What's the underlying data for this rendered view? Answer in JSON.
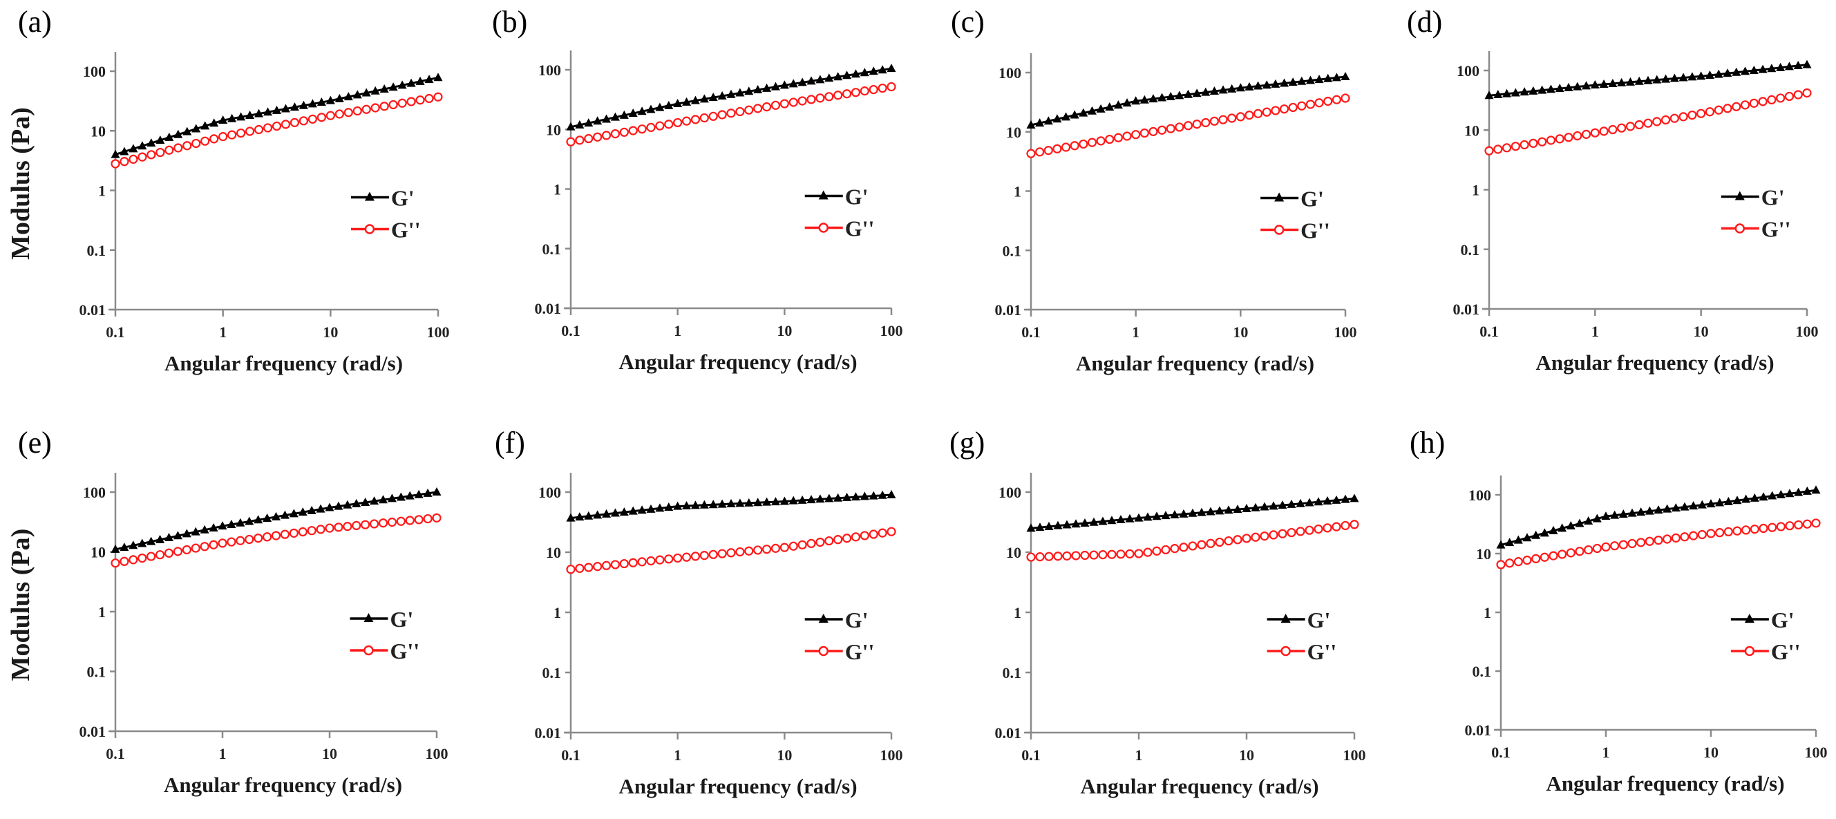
{
  "figure": {
    "y_axis_label": "Modulus (Pa)",
    "x_axis_label": "Angular frequency (rad/s)"
  },
  "colors": {
    "g_prime": "#000000",
    "g_double_prime": "#ff1a1a",
    "axis": "#8a8a8a"
  },
  "chart_data": [
    {
      "panel": "(a)",
      "type": "line",
      "xscale": "log",
      "yscale": "log",
      "xlabel": "Angular frequency (rad/s)",
      "ylabel": "Modulus (Pa)",
      "xlim": [
        0.1,
        100
      ],
      "ylim": [
        0.01,
        100
      ],
      "xticks": [
        "0.1",
        "1",
        "10",
        "100"
      ],
      "yticks": [
        "0.01",
        "0.1",
        "1",
        "10",
        "100"
      ],
      "legend": [
        "G'",
        "G''"
      ],
      "legend_position": "center-right",
      "x": [
        0.1,
        1,
        10,
        100
      ],
      "series": [
        {
          "name": "G'",
          "marker": "triangle",
          "values": [
            4,
            15,
            32,
            78
          ]
        },
        {
          "name": "G''",
          "marker": "open-circle",
          "values": [
            2.8,
            8,
            18,
            37
          ]
        }
      ]
    },
    {
      "panel": "(b)",
      "type": "line",
      "xscale": "log",
      "yscale": "log",
      "xlabel": "Angular frequency (rad/s)",
      "ylabel": "",
      "xlim": [
        0.1,
        100
      ],
      "ylim": [
        0.01,
        100
      ],
      "xticks": [
        "0.1",
        "1",
        "10",
        "100"
      ],
      "yticks": [
        "0.01",
        "0.1",
        "1",
        "10",
        "100"
      ],
      "legend": [
        "G'",
        "G''"
      ],
      "legend_position": "center-right",
      "x": [
        0.1,
        1,
        10,
        100
      ],
      "series": [
        {
          "name": "G'",
          "marker": "triangle",
          "values": [
            11,
            27,
            55,
            105
          ]
        },
        {
          "name": "G''",
          "marker": "open-circle",
          "values": [
            6.2,
            13,
            27,
            52
          ]
        }
      ]
    },
    {
      "panel": "(c)",
      "type": "line",
      "xscale": "log",
      "yscale": "log",
      "xlabel": "Angular frequency (rad/s)",
      "ylabel": "",
      "xlim": [
        0.1,
        100
      ],
      "ylim": [
        0.01,
        100
      ],
      "xticks": [
        "0.1",
        "1",
        "10",
        "100"
      ],
      "yticks": [
        "0.01",
        "0.1",
        "1",
        "10",
        "100"
      ],
      "legend": [
        "G'",
        "G''"
      ],
      "legend_position": "center-right",
      "x": [
        0.1,
        1,
        10,
        100
      ],
      "series": [
        {
          "name": "G'",
          "marker": "triangle",
          "values": [
            13,
            33,
            55,
            85
          ]
        },
        {
          "name": "G''",
          "marker": "open-circle",
          "values": [
            4.3,
            9,
            18,
            37
          ]
        }
      ]
    },
    {
      "panel": "(d)",
      "type": "line",
      "xscale": "log",
      "yscale": "log",
      "xlabel": "Angular frequency (rad/s)",
      "ylabel": "",
      "xlim": [
        0.1,
        100
      ],
      "ylim": [
        0.01,
        100
      ],
      "xticks": [
        "0.1",
        "1",
        "10",
        "100"
      ],
      "yticks": [
        "0.01",
        "0.1",
        "1",
        "10",
        "100"
      ],
      "legend": [
        "G'",
        "G''"
      ],
      "legend_position": "center-right",
      "x": [
        0.1,
        1,
        10,
        100
      ],
      "series": [
        {
          "name": "G'",
          "marker": "triangle",
          "values": [
            38,
            57,
            80,
            125
          ]
        },
        {
          "name": "G''",
          "marker": "open-circle",
          "values": [
            4.5,
            9,
            19,
            42
          ]
        }
      ]
    },
    {
      "panel": "(e)",
      "type": "line",
      "xscale": "log",
      "yscale": "log",
      "xlabel": "Angular frequency (rad/s)",
      "ylabel": "Modulus (Pa)",
      "xlim": [
        0.1,
        100
      ],
      "ylim": [
        0.01,
        100
      ],
      "xticks": [
        "0.1",
        "1",
        "10",
        "100"
      ],
      "yticks": [
        "0.01",
        "0.1",
        "1",
        "10",
        "100"
      ],
      "legend": [
        "G'",
        "G''"
      ],
      "legend_position": "center-right",
      "x": [
        0.1,
        1,
        10,
        100
      ],
      "series": [
        {
          "name": "G'",
          "marker": "triangle",
          "values": [
            11,
            27,
            55,
            100
          ]
        },
        {
          "name": "G''",
          "marker": "open-circle",
          "values": [
            6.5,
            14,
            25,
            37
          ]
        }
      ]
    },
    {
      "panel": "(f)",
      "type": "line",
      "xscale": "log",
      "yscale": "log",
      "xlabel": "Angular frequency (rad/s)",
      "ylabel": "",
      "xlim": [
        0.1,
        100
      ],
      "ylim": [
        0.01,
        100
      ],
      "xticks": [
        "0.1",
        "1",
        "10",
        "100"
      ],
      "yticks": [
        "0.01",
        "0.1",
        "1",
        "10",
        "100"
      ],
      "legend": [
        "G'",
        "G''"
      ],
      "legend_position": "center-right",
      "x": [
        0.1,
        1,
        10,
        100
      ],
      "series": [
        {
          "name": "G'",
          "marker": "triangle",
          "values": [
            37,
            58,
            70,
            90
          ]
        },
        {
          "name": "G''",
          "marker": "open-circle",
          "values": [
            5.2,
            8,
            12,
            22
          ]
        }
      ]
    },
    {
      "panel": "(g)",
      "type": "line",
      "xscale": "log",
      "yscale": "log",
      "xlabel": "Angular frequency (rad/s)",
      "ylabel": "",
      "xlim": [
        0.1,
        100
      ],
      "ylim": [
        0.01,
        100
      ],
      "xticks": [
        "0.1",
        "1",
        "10",
        "100"
      ],
      "yticks": [
        "0.01",
        "0.1",
        "1",
        "10",
        "100"
      ],
      "legend": [
        "G'",
        "G''"
      ],
      "legend_position": "center-right",
      "x": [
        0.1,
        1,
        10,
        100
      ],
      "series": [
        {
          "name": "G'",
          "marker": "triangle",
          "values": [
            25,
            37,
            53,
            78
          ]
        },
        {
          "name": "G''",
          "marker": "open-circle",
          "values": [
            8.3,
            9.5,
            17,
            29
          ]
        }
      ]
    },
    {
      "panel": "(h)",
      "type": "line",
      "xscale": "log",
      "yscale": "log",
      "xlabel": "Angular frequency (rad/s)",
      "ylabel": "",
      "xlim": [
        0.1,
        100
      ],
      "ylim": [
        0.01,
        100
      ],
      "xticks": [
        "0.1",
        "1",
        "10",
        "100"
      ],
      "yticks": [
        "0.01",
        "0.1",
        "1",
        "10",
        "100"
      ],
      "legend": [
        "G'",
        "G''"
      ],
      "legend_position": "center-right",
      "x": [
        0.1,
        1,
        10,
        100
      ],
      "series": [
        {
          "name": "G'",
          "marker": "triangle",
          "values": [
            14,
            43,
            70,
            120
          ]
        },
        {
          "name": "G''",
          "marker": "open-circle",
          "values": [
            6.5,
            13,
            22,
            33
          ]
        }
      ]
    }
  ]
}
